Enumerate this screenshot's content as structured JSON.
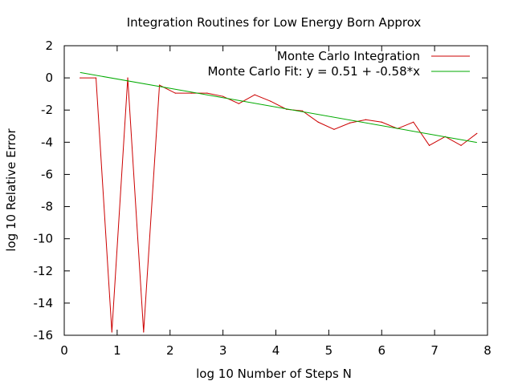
{
  "chart_data": {
    "type": "line",
    "title": "Integration Routines for Low Energy Born Approx",
    "xlabel": "log 10 Number of Steps N",
    "ylabel": "log 10 Relative Error",
    "xlim": [
      0,
      8
    ],
    "ylim": [
      -16,
      2
    ],
    "xticks": [
      0,
      1,
      2,
      3,
      4,
      5,
      6,
      7,
      8
    ],
    "yticks": [
      2,
      0,
      -2,
      -4,
      -6,
      -8,
      -10,
      -12,
      -14,
      -16
    ],
    "grid": false,
    "legend_position": "top-right",
    "series": [
      {
        "name": "Monte Carlo Integration",
        "color": "#cc0000",
        "x": [
          0.3,
          0.6,
          0.9,
          1.2,
          1.5,
          1.8,
          2.1,
          2.4,
          2.7,
          3.0,
          3.3,
          3.6,
          3.9,
          4.2,
          4.5,
          4.8,
          5.1,
          5.4,
          5.7,
          6.0,
          6.3,
          6.6,
          6.9,
          7.2,
          7.5,
          7.8
        ],
        "y": [
          0.0,
          0.0,
          -15.8,
          0.0,
          -15.8,
          -0.45,
          -0.95,
          -0.95,
          -0.95,
          -1.15,
          -1.6,
          -1.05,
          -1.45,
          -1.95,
          -2.05,
          -2.75,
          -3.2,
          -2.8,
          -2.6,
          -2.75,
          -3.15,
          -2.75,
          -4.2,
          -3.65,
          -4.2,
          -3.45
        ]
      },
      {
        "name": "Monte Carlo Fit: y = 0.51 + -0.58*x",
        "color": "#00aa00",
        "fit": {
          "intercept": 0.51,
          "slope": -0.58,
          "x_range": [
            0.3,
            7.8
          ]
        }
      }
    ]
  }
}
